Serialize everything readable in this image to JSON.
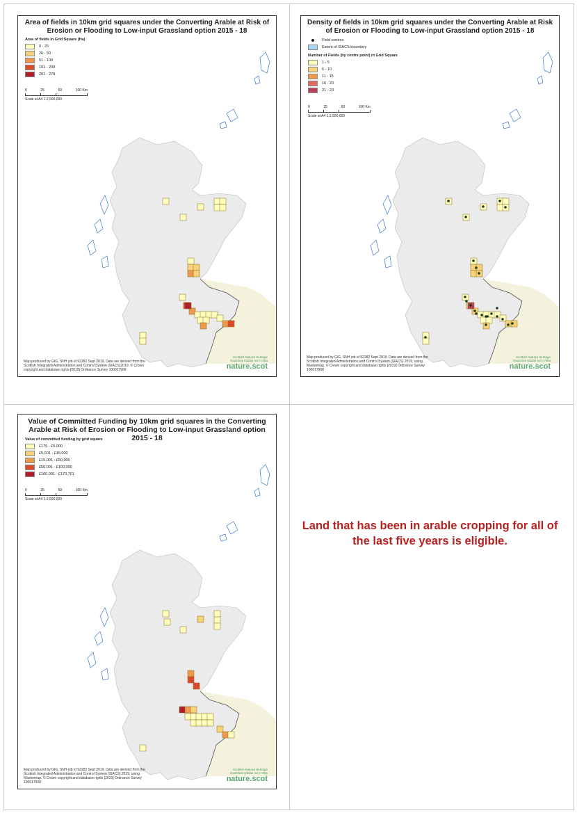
{
  "panels": [
    {
      "title": "Area of fields in 10km grid squares under the Converting Arable at Risk of Erosion or Flooding to Low-input Grassland option 2015 - 18",
      "legend_header": "Area of fields in Grid Square (Ha)",
      "legend": [
        {
          "label": "0 - 25",
          "color": "#ffffbe"
        },
        {
          "label": "26 - 50",
          "color": "#f7d27a"
        },
        {
          "label": "51 - 100",
          "color": "#ee9a4c"
        },
        {
          "label": "101 - 200",
          "color": "#de4a2c"
        },
        {
          "label": "201 - 278",
          "color": "#b01c2a"
        }
      ],
      "scale_ticks": [
        "0",
        "25",
        "50",
        "100 Km"
      ],
      "scale_text": "Scale at A4 1:2,500,000",
      "credit": "Map produced by GIG, SNH job id 92282 Sept 2019. Data are derived from the Scottish Integrated Administration and Control System (SIACS)2019. © Crown copyright and database rights [2019] Ordnance Survey 100017908"
    },
    {
      "title": "Density of fields in 10km grid squares under the Converting Arable at Risk of Erosion or Flooding to Low-input Grassland option 2015 - 18",
      "legend_extra": [
        "Field centres",
        "Extent of SIACS boundary"
      ],
      "legend_header": "Number of Fields (by centre point) in Grid Square",
      "legend": [
        {
          "label": "1 - 5",
          "color": "#ffffbe"
        },
        {
          "label": "6 - 10",
          "color": "#f7d27a"
        },
        {
          "label": "11 - 15",
          "color": "#ee9a4c"
        },
        {
          "label": "16 - 20",
          "color": "#de6a5c"
        },
        {
          "label": "21 - 23",
          "color": "#b8405a"
        }
      ],
      "extent_color": "#a8d8f0",
      "scale_ticks": [
        "0",
        "25",
        "50",
        "100 Km"
      ],
      "scale_text": "Scale at A4 1:2,500,000",
      "credit": "Map produced by GIG, SNH job id 92282 Sept 2019. Data are derived from the Scottish Integrated Administration and Control System (SIACS) 2019, using Mastermap. © Crown copyright and database rights [2019] Ordnance Survey 100017908"
    },
    {
      "title": "Value of Committed Funding by 10km grid squares in the Converting Arable at Risk of Erosion or Flooding to Low-input Grassland option 2015 - 18",
      "legend_header": "Value of committed funding by grid square",
      "legend": [
        {
          "label": "£175 - £5,000",
          "color": "#ffffbe"
        },
        {
          "label": "£5,001 - £15,000",
          "color": "#f7d27a"
        },
        {
          "label": "£15,001 - £50,000",
          "color": "#ee9a4c"
        },
        {
          "label": "£50,001 - £100,000",
          "color": "#de4a2c"
        },
        {
          "label": "£100,001 - £173,701",
          "color": "#b01c2a"
        }
      ],
      "scale_ticks": [
        "0",
        "25",
        "50",
        "100 Km"
      ],
      "scale_text": "Scale at A4 1:2,500,000",
      "credit": "Map produced by GIG, SNH job id 92282 Sept 2019. Data are derived from the Scottish Integrated Administration and Control System (SIACS) 2019, using Mastermap. © Crown copyright and database rights [2019] Ordnance Survey 100017908"
    }
  ],
  "logo": {
    "small": [
      "Scottish Natural Heritage",
      "Dualchas Nàdair na h-Alba"
    ],
    "big": "nature.scot"
  },
  "statement": "Land that has been in arable cropping for all of the last five years is eligible.",
  "colors": {
    "land": "#ebebeb",
    "england": "#f4f1dc",
    "statement": "#b42121"
  }
}
